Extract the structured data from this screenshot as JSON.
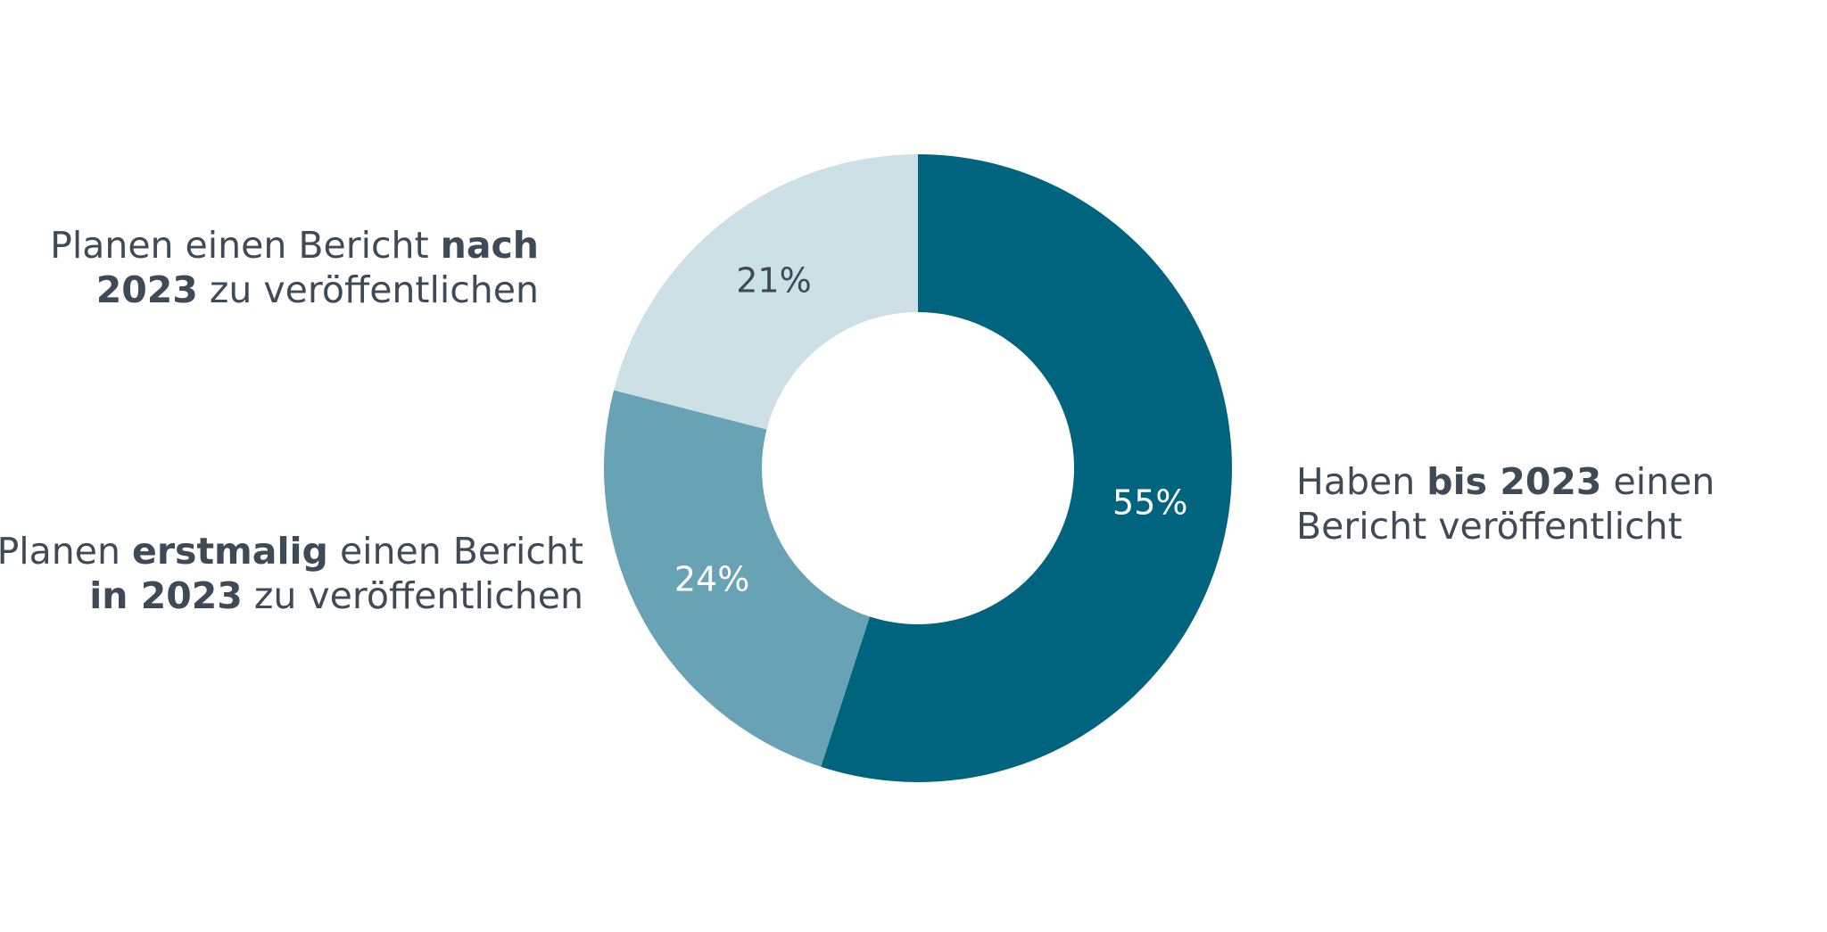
{
  "chart_data": {
    "type": "donut",
    "values": [
      55,
      24,
      21
    ],
    "value_labels": [
      "55%",
      "24%",
      "21%"
    ],
    "colors": [
      "#00647f",
      "#68a3b5",
      "#cde0e6"
    ],
    "value_label_colors": [
      "#ffffff",
      "#ffffff",
      "#3e4a56"
    ],
    "categories": [
      [
        [
          {
            "text": "Haben ",
            "bold": false
          },
          {
            "text": "bis 2023",
            "bold": true
          },
          {
            "text": " einen",
            "bold": false
          }
        ],
        [
          {
            "text": "Bericht veröffentlicht",
            "bold": false
          }
        ]
      ],
      [
        [
          {
            "text": "Planen ",
            "bold": false
          },
          {
            "text": "erstmalig",
            "bold": true
          },
          {
            "text": " einen Bericht",
            "bold": false
          }
        ],
        [
          {
            "text": "in 2023",
            "bold": true
          },
          {
            "text": " zu veröffentlichen",
            "bold": false
          }
        ]
      ],
      [
        [
          {
            "text": "Planen einen Bericht ",
            "bold": false
          },
          {
            "text": "nach",
            "bold": true
          }
        ],
        [
          {
            "text": "2023",
            "bold": true
          },
          {
            "text": " zu veröffentlichen",
            "bold": false
          }
        ]
      ]
    ]
  }
}
